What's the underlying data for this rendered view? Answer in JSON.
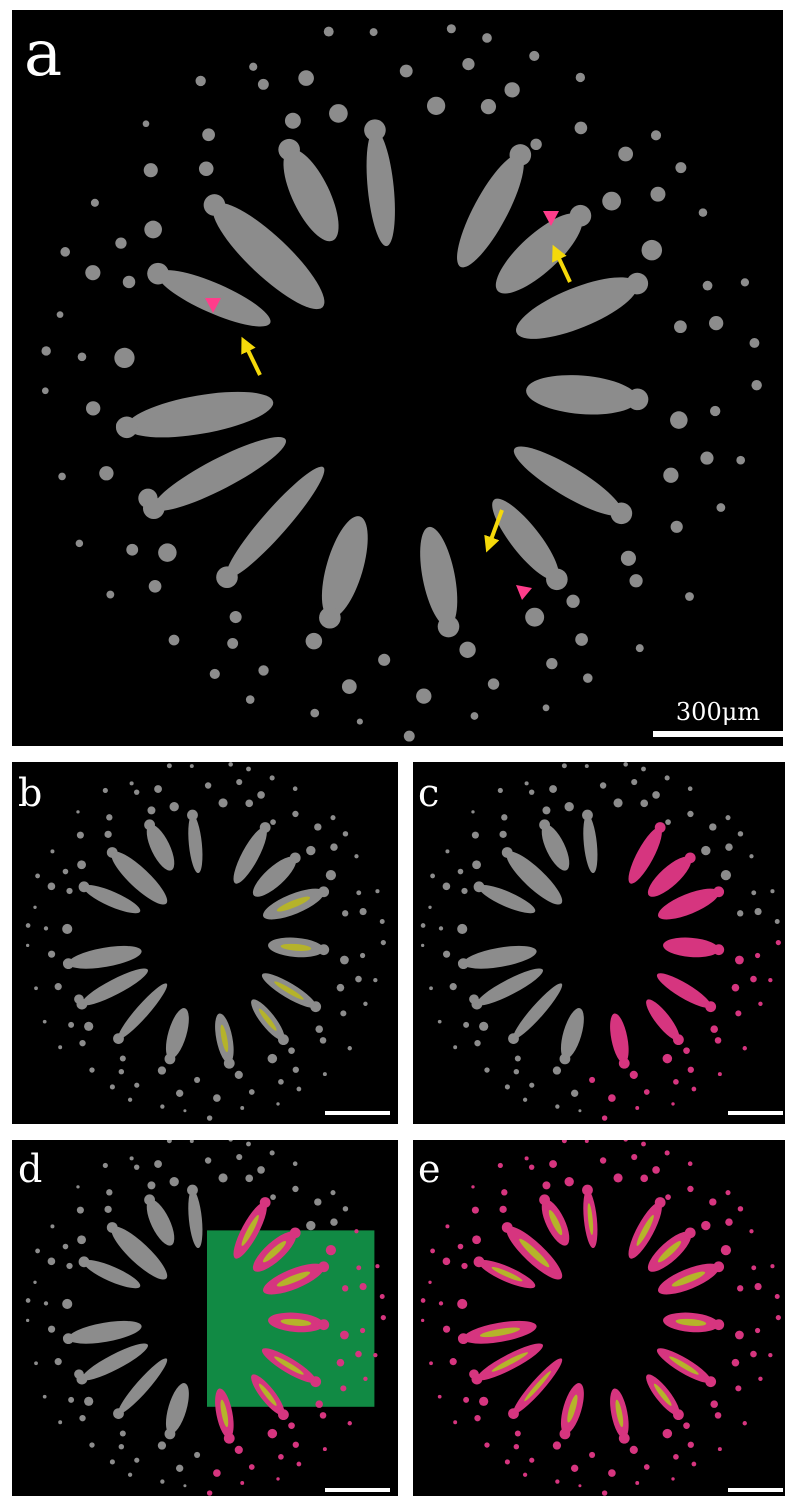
{
  "panel_labels": [
    "a",
    "b",
    "c",
    "d",
    "e"
  ],
  "scale_bar_label": "300μm"
}
